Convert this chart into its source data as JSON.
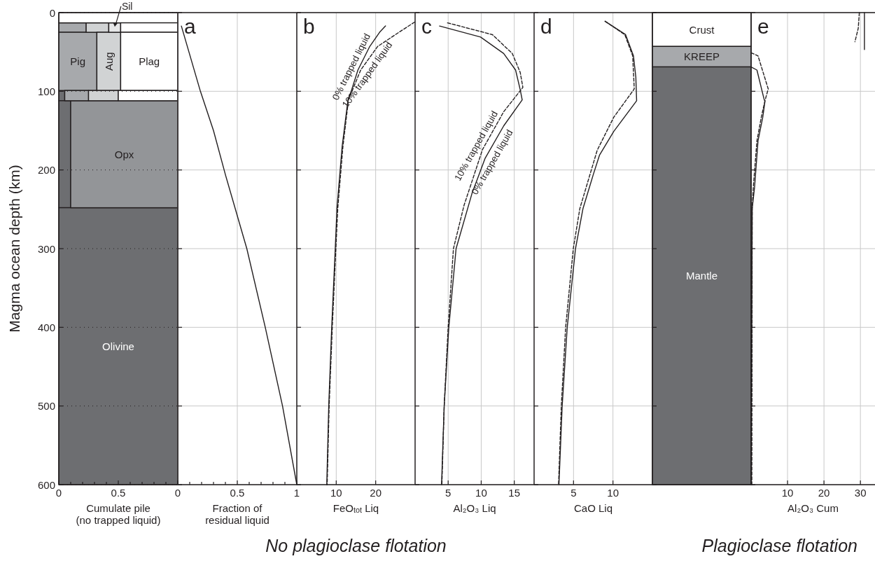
{
  "chart_data": [
    {
      "type": "bar",
      "stacked": true,
      "orientation": "horizontal",
      "x": [
        6.5,
        19,
        62,
        105.5,
        180,
        424
      ],
      "series": [
        {
          "name": "Olivine",
          "color": "#6d6e71",
          "values": [
            0,
            0,
            0,
            0.05,
            0.1,
            1
          ]
        },
        {
          "name": "Opx",
          "color": "#939598",
          "values": [
            0,
            0,
            0,
            0,
            0.9,
            0
          ]
        },
        {
          "name": "Pig",
          "color": "#a7a9ac",
          "values": [
            0,
            0.23,
            0.32,
            0.2,
            0,
            0
          ]
        },
        {
          "name": "Aug",
          "color": "#d1d3d4",
          "values": [
            0,
            0.19,
            0.2,
            0.25,
            0,
            0
          ]
        },
        {
          "name": "Sil",
          "color": "#e6e7e8",
          "values": [
            0,
            0.1,
            0,
            0,
            0,
            0
          ]
        },
        {
          "name": "Plag",
          "color": "#ffffff",
          "values": [
            1,
            0.48,
            0.48,
            0.5,
            0,
            0
          ]
        }
      ],
      "xlim": [
        0,
        1
      ],
      "xticks": [
        0,
        {
          "value": 0.1,
          "label": null
        },
        {
          "value": 0.2,
          "label": null
        },
        {
          "value": 0.3,
          "label": null
        },
        {
          "value": 0.4,
          "label": null
        },
        0.5,
        {
          "value": 0.6,
          "label": null
        },
        {
          "value": 0.7,
          "label": null
        },
        {
          "value": 0.8,
          "label": null
        },
        {
          "value": 0.9,
          "label": null
        },
        {
          "value": 1,
          "label": null
        }
      ],
      "ylim": [
        600,
        0
      ],
      "yticks": [
        0,
        100,
        200,
        300,
        400,
        500,
        600
      ],
      "ylabel": "Magma ocean depth (km)",
      "xlabel": "Cumulate pile\n(no trapped liquid)",
      "grid": "y"
    },
    {
      "type": "line",
      "title": "a",
      "color": "#231f20",
      "x": [
        0.03,
        0.19,
        0.3,
        0.4,
        0.58,
        0.735,
        0.88,
        1.0
      ],
      "values": [
        17,
        100,
        150,
        206,
        300,
        400,
        500,
        600
      ],
      "xlim": [
        0,
        1
      ],
      "xticks": [
        0,
        {
          "value": 0.1,
          "label": null
        },
        {
          "value": 0.2,
          "label": null
        },
        {
          "value": 0.3,
          "label": null
        },
        {
          "value": 0.4,
          "label": null
        },
        0.5,
        {
          "value": 0.6,
          "label": null
        },
        {
          "value": 0.7,
          "label": null
        },
        {
          "value": 0.8,
          "label": null
        },
        {
          "value": 0.9,
          "label": null
        },
        1
      ],
      "ylim": [
        600,
        0
      ],
      "yticks": [
        0,
        100,
        200,
        300,
        400,
        500,
        600
      ],
      "tick_labels": "x",
      "xlabel": "Fraction of\nresidual liquid",
      "grid": true
    },
    {
      "type": "line",
      "title": "b",
      "series": [
        {
          "color": "#231f20",
          "line_style": "solid",
          "x": [
            22.5,
            21,
            18.5,
            15.5,
            13.8,
            13.0,
            11.5,
            10.2,
            9.75,
            8.85,
            8.1,
            7.6
          ],
          "values": [
            17,
            25,
            43,
            73,
            100,
            110,
            170,
            248,
            300,
            400,
            500,
            600
          ]
        },
        {
          "color": "#231f20",
          "line_style": "dashed",
          "x": [
            29.9,
            25.9,
            20.5,
            16.2,
            14.0,
            13.1,
            11.7,
            10.4,
            9.9,
            9.0,
            8.2,
            7.7
          ],
          "values": [
            12,
            25,
            43,
            73,
            100,
            111,
            170,
            248,
            300,
            400,
            500,
            600
          ]
        }
      ],
      "xlim": [
        0,
        30
      ],
      "xticks": [
        10,
        20
      ],
      "ylim": [
        600,
        0
      ],
      "yticks": [
        0,
        100,
        200,
        300,
        400,
        500,
        600
      ],
      "tick_labels": "x",
      "xlabel": "FeO$_{tot}$ Liq",
      "grid": true,
      "annotations": [
        "No plagioclase flotation",
        {
          "text": "0% trapped liquid",
          "x": 15.5,
          "y": 73
        },
        {
          "text": "10% trapped liquid",
          "x": 16.2,
          "y": 73
        }
      ]
    },
    {
      "type": "line",
      "title": "c",
      "series": [
        {
          "color": "#231f20",
          "line_style": "solid",
          "x": [
            3.7,
            9.9,
            13.4,
            15.2,
            15.9,
            16.2,
            13.4,
            10.6,
            8.6,
            6.2,
            5.1,
            4.4,
            4.0
          ],
          "values": [
            17,
            31,
            52,
            73,
            98,
            111,
            144,
            185,
            230,
            300,
            400,
            500,
            600
          ]
        },
        {
          "color": "#231f20",
          "line_style": "dashed",
          "x": [
            4.9,
            11.7,
            14.7,
            15.9,
            16.3,
            13.4,
            10.2,
            7.4,
            5.8,
            5.0,
            4.4,
            4.05
          ],
          "values": [
            13,
            28,
            52,
            76,
            95,
            126,
            174,
            245,
            300,
            400,
            500,
            600
          ]
        }
      ],
      "xlim": [
        0,
        18
      ],
      "xticks": [
        5,
        10,
        15
      ],
      "ylim": [
        600,
        0
      ],
      "yticks": [
        0,
        100,
        200,
        300,
        400,
        500,
        600
      ],
      "tick_labels": "x",
      "xlabel": "Al₂O₃ Liq",
      "grid": true,
      "annotations": [
        {
          "text": "10% trapped liquid",
          "x": 10.2,
          "y": 174
        },
        {
          "text": "0% trapped liquid",
          "x": 10.6,
          "y": 185
        }
      ]
    },
    {
      "type": "line",
      "title": "d",
      "series": [
        {
          "color": "#231f20",
          "line_style": "solid",
          "x": [
            9.0,
            11.6,
            12.6,
            12.9,
            13.0,
            10.1,
            8.3,
            7.5,
            6.2,
            5.25,
            4.2,
            3.56,
            3.15
          ],
          "values": [
            11,
            28,
            55,
            82,
            112,
            151,
            181,
            206,
            249,
            300,
            400,
            500,
            600
          ]
        },
        {
          "color": "#231f20",
          "line_style": "dashed",
          "x": [
            9.0,
            11.5,
            12.5,
            12.7,
            10.1,
            8.0,
            5.8,
            4.97,
            4.0,
            3.45,
            3.1
          ],
          "values": [
            11,
            28,
            55,
            97,
            133,
            175,
            249,
            300,
            400,
            500,
            600
          ]
        }
      ],
      "xlim": [
        0,
        15
      ],
      "xticks": [
        5,
        10
      ],
      "ylim": [
        600,
        0
      ],
      "yticks": [
        0,
        100,
        200,
        300,
        400,
        500,
        600
      ],
      "tick_labels": "x",
      "xlabel": "CaO Liq",
      "grid": true
    },
    {
      "type": "bar",
      "stacked": true,
      "categories": [
        null
      ],
      "series": [
        {
          "name": "Crust",
          "color": "#ffffff",
          "values": [
            43
          ]
        },
        {
          "name": "KREEP",
          "color": "#a7a9ac",
          "values": [
            26
          ]
        },
        {
          "name": "Mantle",
          "color": "#6d6e71",
          "values": [
            531
          ]
        }
      ],
      "ylim": [
        600,
        0
      ],
      "yticks": [
        0,
        100,
        200,
        300,
        400,
        500,
        600
      ],
      "tick_labels": false
    },
    {
      "type": "line",
      "title": "e",
      "series": [
        {
          "color": "#231f20",
          "line_style": "solid",
          "x": [
            31.1,
            31.1
          ],
          "values": [
            0,
            47
          ]
        },
        {
          "color": "#231f20",
          "line_style": "dashed",
          "x": [
            29.7,
            29.4,
            28.5
          ],
          "values": [
            0,
            20,
            37
          ]
        },
        {
          "color": "#231f20",
          "line_style": "solid",
          "x": [
            0,
            1.6,
            3.5,
            3.8,
            3.2,
            1.9,
            0.95,
            0.3,
            0
          ],
          "values": [
            69,
            73,
            109,
            113,
            133,
            163,
            222,
            249,
            600
          ]
        },
        {
          "color": "#231f20",
          "line_style": "dashed",
          "x": [
            0,
            1.9,
            4.7,
            3.8,
            2.8,
            1.6,
            0.6,
            0.3,
            0.2
          ],
          "values": [
            51,
            55,
            97,
            112,
            133,
            163,
            222,
            249,
            600
          ]
        }
      ],
      "xlim": [
        0,
        34
      ],
      "xticks": [
        10,
        20,
        30
      ],
      "ylim": [
        600,
        0
      ],
      "yticks": [
        0,
        100,
        200,
        300,
        400,
        500,
        600
      ],
      "tick_labels": "x",
      "xlabel": "Al₂O₃ Cum",
      "grid": true,
      "annotations": [
        "Plagioclase flotation"
      ]
    }
  ]
}
